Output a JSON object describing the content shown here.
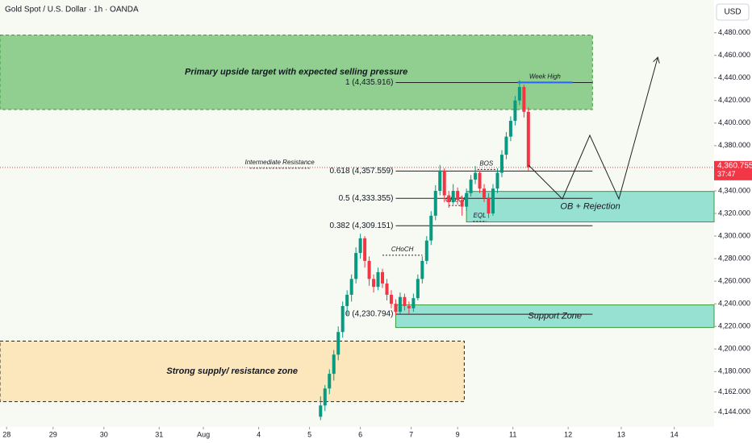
{
  "chart_data": {
    "type": "candlestick",
    "title": "Gold Spot / U.S. Dollar · 1h · OANDA",
    "currency": "USD",
    "xlim": [
      -140,
      183
    ],
    "xticks": [
      {
        "value": -137,
        "label": "28"
      },
      {
        "value": -116,
        "label": "29"
      },
      {
        "value": -93,
        "label": "30"
      },
      {
        "value": -68,
        "label": "31"
      },
      {
        "value": -48,
        "label": "Aug"
      },
      {
        "value": -23,
        "label": "4"
      },
      {
        "value": 0,
        "label": "5"
      },
      {
        "value": 23,
        "label": "6"
      },
      {
        "value": 46,
        "label": "7"
      },
      {
        "value": 67,
        "label": "9"
      },
      {
        "value": 92,
        "label": "11"
      },
      {
        "value": 117,
        "label": "12"
      },
      {
        "value": 141,
        "label": "13"
      },
      {
        "value": 165,
        "label": "14"
      }
    ],
    "ylim": [
      4131,
      4509
    ],
    "yticks": [
      {
        "value": 4480,
        "label": "4,480.000"
      },
      {
        "value": 4460,
        "label": "4,460.000"
      },
      {
        "value": 4440,
        "label": "4,440.000"
      },
      {
        "value": 4420,
        "label": "4,420.000"
      },
      {
        "value": 4400,
        "label": "4,400.000"
      },
      {
        "value": 4380,
        "label": "4,380.000"
      },
      {
        "value": 4340,
        "label": "4,340.000"
      },
      {
        "value": 4320,
        "label": "4,320.000"
      },
      {
        "value": 4300,
        "label": "4,300.000"
      },
      {
        "value": 4280,
        "label": "4,280.000"
      },
      {
        "value": 4260,
        "label": "4,260.000"
      },
      {
        "value": 4240,
        "label": "4,240.000"
      },
      {
        "value": 4220,
        "label": "4,220.000"
      },
      {
        "value": 4200,
        "label": "4,200.000"
      },
      {
        "value": 4180,
        "label": "4,180.000"
      },
      {
        "value": 4162,
        "label": "4,162.000"
      },
      {
        "value": 4144,
        "label": "4,144.000"
      }
    ],
    "up_color": "#089981",
    "down_color": "#f23645",
    "candles": {
      "x": [
        5,
        7,
        9,
        11,
        13,
        15,
        17,
        19,
        21,
        23,
        25,
        27,
        29,
        31,
        33,
        35,
        37,
        39,
        41,
        43,
        45,
        47,
        49,
        51,
        53,
        55,
        57,
        59,
        61,
        63,
        65,
        67,
        69,
        71,
        73,
        75,
        77,
        79,
        81,
        83,
        85,
        87,
        89,
        91,
        93,
        95,
        97,
        99
      ],
      "open": [
        4140,
        4150,
        4165,
        4178,
        4195,
        4215,
        4238,
        4248,
        4262,
        4285,
        4298,
        4278,
        4262,
        4255,
        4268,
        4258,
        4248,
        4240,
        4233,
        4246,
        4238,
        4236,
        4245,
        4262,
        4278,
        4296,
        4318,
        4340,
        4358,
        4336,
        4330,
        4340,
        4332,
        4326,
        4338,
        4350,
        4356,
        4342,
        4334,
        4320,
        4342,
        4356,
        4372,
        4388,
        4402,
        4420,
        4432,
        4410
      ],
      "high": [
        4158,
        4168,
        4182,
        4199,
        4220,
        4242,
        4252,
        4266,
        4290,
        4302,
        4300,
        4282,
        4266,
        4272,
        4271,
        4262,
        4252,
        4244,
        4250,
        4249,
        4242,
        4249,
        4266,
        4282,
        4300,
        4322,
        4345,
        4363,
        4360,
        4340,
        4346,
        4343,
        4336,
        4342,
        4354,
        4362,
        4358,
        4346,
        4338,
        4346,
        4360,
        4376,
        4392,
        4406,
        4424,
        4438,
        4434,
        4414
      ],
      "low": [
        4137,
        4145,
        4160,
        4172,
        4190,
        4210,
        4230,
        4242,
        4258,
        4280,
        4272,
        4256,
        4250,
        4252,
        4254,
        4243,
        4236,
        4230,
        4231,
        4234,
        4231,
        4233,
        4243,
        4258,
        4275,
        4292,
        4314,
        4336,
        4330,
        4325,
        4328,
        4328,
        4318,
        4322,
        4335,
        4346,
        4338,
        4330,
        4316,
        4318,
        4338,
        4352,
        4368,
        4384,
        4398,
        4416,
        4405,
        4358
      ],
      "close": [
        4150,
        4165,
        4178,
        4195,
        4215,
        4238,
        4248,
        4262,
        4285,
        4298,
        4278,
        4262,
        4255,
        4268,
        4258,
        4248,
        4240,
        4233,
        4246,
        4238,
        4236,
        4245,
        4262,
        4278,
        4296,
        4318,
        4340,
        4358,
        4336,
        4330,
        4340,
        4332,
        4326,
        4338,
        4350,
        4356,
        4342,
        4334,
        4320,
        4342,
        4356,
        4372,
        4388,
        4402,
        4420,
        4432,
        4410,
        4360.755
      ]
    },
    "last_price": {
      "value": 4360.755,
      "label": "4,360.755"
    },
    "countdown": "37:47",
    "zones": [
      {
        "label": "Primary upside target with expected selling pressure",
        "y": [
          4412,
          4478
        ],
        "x": [
          -140,
          128
        ],
        "color": "#7fc77f"
      },
      {
        "label": "OB + Rejection",
        "y": [
          4312.5,
          4339.5
        ],
        "x": [
          71,
          183
        ],
        "color": "#86dccb"
      },
      {
        "label": "Support Zone",
        "y": [
          4219,
          4239
        ],
        "x": [
          39,
          183
        ],
        "color": "#86dccb"
      },
      {
        "label": "Strong supply/ resistance zone",
        "y": [
          4153.4,
          4207
        ],
        "x": [
          -140,
          70
        ],
        "color": "#fbe3b0"
      }
    ],
    "fib_x": [
      39,
      128
    ],
    "fib_levels": [
      {
        "value": 4435.916,
        "label": "1 (4,435.916)"
      },
      {
        "value": 4357.559,
        "label": "0.618 (4,357.559)"
      },
      {
        "value": 4333.355,
        "label": "0.5 (4,333.355)"
      },
      {
        "value": 4309.151,
        "label": "0.382 (4,309.151)"
      },
      {
        "value": 4230.794,
        "label": "0 (4,230.794)"
      }
    ],
    "annotations": [
      {
        "text": "Week High",
        "value": 4436,
        "x": [
          94,
          119
        ]
      },
      {
        "text": "BOS",
        "value": 4359,
        "x": [
          76,
          84
        ]
      },
      {
        "text": "CHoCH",
        "value": 4283,
        "x": [
          33,
          51
        ]
      },
      {
        "text": "CHoCH",
        "value": 4327,
        "x": [
          63,
          70
        ]
      },
      {
        "text": "EQL",
        "value": 4313,
        "x": [
          74,
          80
        ]
      },
      {
        "text": "Intermediate Resistance",
        "value": 4360,
        "x": [
          -27,
          0
        ]
      }
    ]
  }
}
